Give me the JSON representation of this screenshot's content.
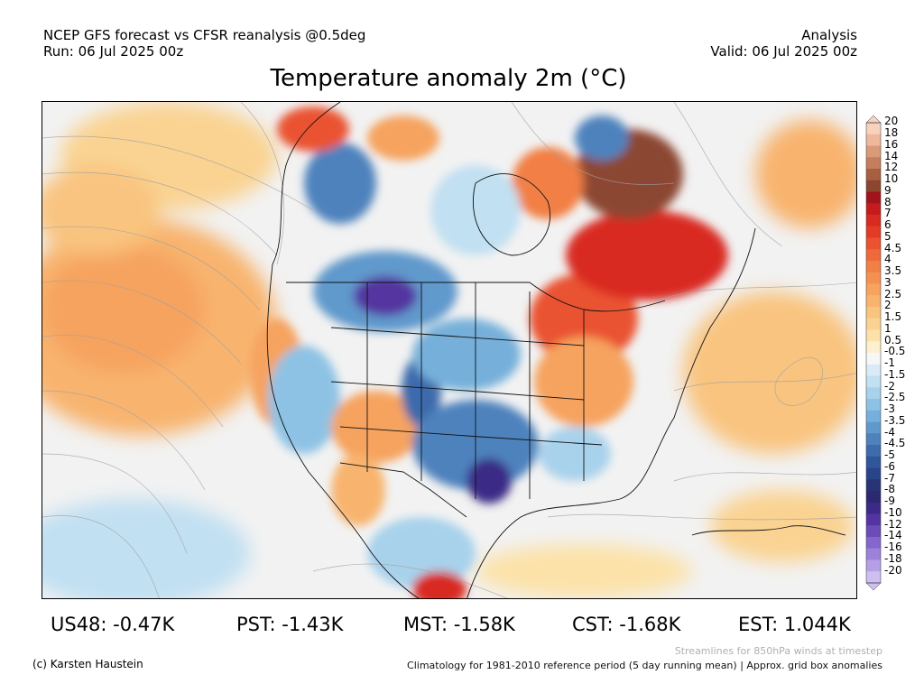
{
  "header": {
    "left_line1": "NCEP GFS forecast vs CFSR reanalysis @0.5deg",
    "left_line2": "Run: 06 Jul 2025 00z",
    "right_line1": "Analysis",
    "right_line2": "Valid: 06 Jul 2025 00z"
  },
  "title": "Temperature anomaly 2m (°C)",
  "colorbar": {
    "labels": [
      "20",
      "18",
      "16",
      "14",
      "12",
      "10",
      "9",
      "8",
      "7",
      "6",
      "5",
      "4.5",
      "4",
      "3.5",
      "3",
      "2.5",
      "2",
      "1.5",
      "1",
      "0.5",
      "-0.5",
      "-1",
      "-1.5",
      "-2",
      "-2.5",
      "-3",
      "-3.5",
      "-4",
      "-4.5",
      "-5",
      "-6",
      "-7",
      "-8",
      "-9",
      "-10",
      "-12",
      "-14",
      "-16",
      "-18",
      "-20"
    ],
    "colors": [
      "#f6d2bf",
      "#eeb89d",
      "#d99a78",
      "#c57d5d",
      "#a95e42",
      "#8c4630",
      "#a0151b",
      "#c41c1c",
      "#d92a22",
      "#e23b26",
      "#ea5230",
      "#ef6a3a",
      "#f27f45",
      "#f49152",
      "#f6a35f",
      "#f8b46e",
      "#f9c47f",
      "#fad392",
      "#fce2a8",
      "#fdf0d0",
      "#f7f7f7",
      "#d9ebf6",
      "#c1e0f2",
      "#a8d2ec",
      "#8ec2e4",
      "#76b0da",
      "#6099cc",
      "#4d82bd",
      "#3d6bac",
      "#31569b",
      "#2a448a",
      "#283478",
      "#2b2970",
      "#3b2a86",
      "#5434a0",
      "#6b4cb8",
      "#8566cc",
      "#9d82da",
      "#b5a0e6",
      "#cdbff0"
    ]
  },
  "stats": [
    {
      "label": "US48: -0.47K"
    },
    {
      "label": "PST: -1.43K"
    },
    {
      "label": "MST: -1.58K"
    },
    {
      "label": "CST: -1.68K"
    },
    {
      "label": "EST: 1.044K"
    }
  ],
  "footer": {
    "credit": "(c) Karsten Haustein",
    "streamlines_note": "Streamlines for 850hPa winds at timestep",
    "climatology_note": "Climatology for 1981-2010 reference period (5 day running mean) | Approx. grid box anomalies"
  },
  "map": {
    "region": "North America",
    "variable": "2m temperature anomaly",
    "units": "°C"
  }
}
